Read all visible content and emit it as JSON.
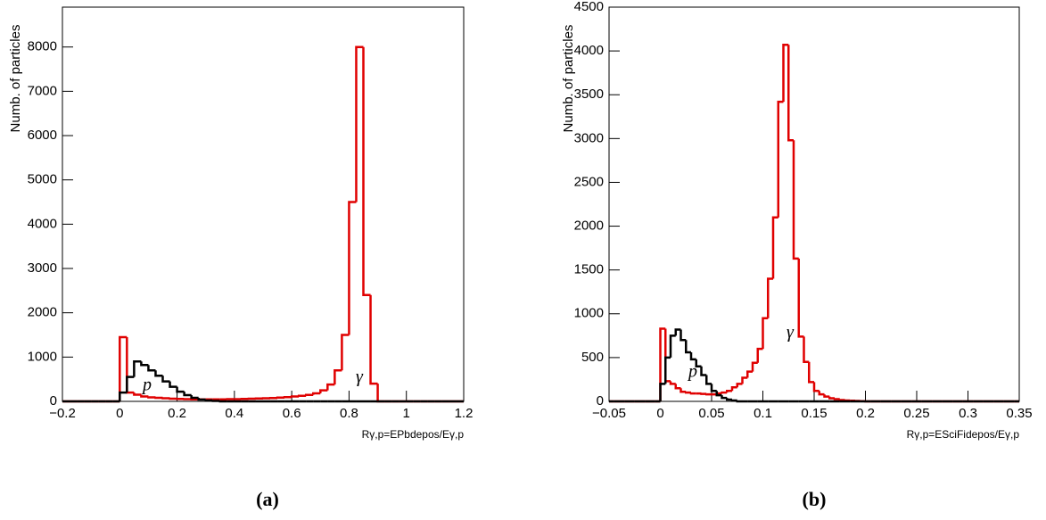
{
  "chart_data": [
    {
      "type": "histogram",
      "caption": "(a)",
      "y_label": "Numb. of particles",
      "x_label": "Rγ,p=EPbdepos/Eγ,p",
      "xlim": [
        -0.2,
        1.2
      ],
      "xticks": [
        {
          "value": -0.2,
          "label": "−0.2"
        },
        0,
        0.2,
        0.4,
        0.6,
        0.8,
        1,
        1.2
      ],
      "ylim": [
        0,
        8900
      ],
      "yticks": [
        0,
        1000,
        2000,
        3000,
        4000,
        5000,
        6000,
        7000,
        8000
      ],
      "annotations": [
        "p",
        "γ"
      ],
      "bins": [
        -0.2,
        -0.175,
        -0.15,
        -0.125,
        -0.1,
        -0.075,
        -0.05,
        -0.025,
        0,
        0.025,
        0.05,
        0.075,
        0.1,
        0.125,
        0.15,
        0.175,
        0.2,
        0.225,
        0.25,
        0.275,
        0.3,
        0.325,
        0.35,
        0.375,
        0.4,
        0.425,
        0.45,
        0.475,
        0.5,
        0.525,
        0.55,
        0.575,
        0.6,
        0.625,
        0.65,
        0.675,
        0.7,
        0.725,
        0.75,
        0.775,
        0.8,
        0.825,
        0.85,
        0.875,
        0.9,
        0.925,
        0.95,
        0.975,
        1,
        1.025,
        1.05,
        1.075,
        1.1,
        1.125,
        1.15,
        1.175,
        1.2
      ],
      "series": [
        {
          "color": "#e00000",
          "values": [
            0,
            0,
            0,
            0,
            0,
            0,
            0,
            0,
            1450,
            200,
            150,
            110,
            90,
            80,
            70,
            60,
            55,
            50,
            45,
            45,
            45,
            45,
            45,
            50,
            50,
            55,
            60,
            65,
            70,
            75,
            85,
            95,
            110,
            125,
            145,
            180,
            250,
            380,
            700,
            1500,
            4500,
            8000,
            2400,
            400,
            0,
            0,
            0,
            0,
            0,
            0,
            0,
            0,
            0,
            0,
            0,
            0
          ]
        },
        {
          "color": "#000000",
          "values": [
            0,
            0,
            0,
            0,
            0,
            0,
            0,
            0,
            200,
            550,
            900,
            820,
            700,
            580,
            450,
            330,
            220,
            140,
            80,
            40,
            20,
            10,
            0,
            0,
            0,
            0,
            0,
            0,
            0,
            0,
            0,
            0,
            0,
            0,
            0,
            0,
            0,
            0,
            0,
            0,
            0,
            0,
            0,
            0,
            0,
            0,
            0,
            0,
            0,
            0,
            0,
            0,
            0,
            0,
            0,
            0
          ]
        }
      ]
    },
    {
      "type": "histogram",
      "caption": "(b)",
      "y_label": "Numb. of particles",
      "x_label": "Rγ,p=ESciFidepos/Eγ,p",
      "xlim": [
        -0.05,
        0.35
      ],
      "xticks": [
        {
          "value": -0.05,
          "label": "−0.05"
        },
        0,
        0.05,
        0.1,
        0.15,
        0.2,
        0.25,
        0.3,
        0.35
      ],
      "ylim": [
        0,
        4500
      ],
      "yticks": [
        0,
        500,
        1000,
        1500,
        2000,
        2500,
        3000,
        3500,
        4000,
        4500
      ],
      "annotations": [
        "p",
        "γ"
      ],
      "bins": [
        -0.05,
        -0.045,
        -0.04,
        -0.035,
        -0.03,
        -0.025,
        -0.02,
        -0.015,
        -0.01,
        -0.005,
        0,
        0.005,
        0.01,
        0.015,
        0.02,
        0.025,
        0.03,
        0.035,
        0.04,
        0.045,
        0.05,
        0.055,
        0.06,
        0.065,
        0.07,
        0.075,
        0.08,
        0.085,
        0.09,
        0.095,
        0.1,
        0.105,
        0.11,
        0.115,
        0.12,
        0.125,
        0.13,
        0.135,
        0.14,
        0.145,
        0.15,
        0.155,
        0.16,
        0.165,
        0.17,
        0.175,
        0.18,
        0.185,
        0.19,
        0.195,
        0.2,
        0.205,
        0.21,
        0.215,
        0.22,
        0.225,
        0.23,
        0.235,
        0.24,
        0.245,
        0.25,
        0.255,
        0.26,
        0.265,
        0.27,
        0.275,
        0.28,
        0.285,
        0.29,
        0.295,
        0.3,
        0.305,
        0.31,
        0.315,
        0.32,
        0.325,
        0.33,
        0.335,
        0.34,
        0.345,
        0.35
      ],
      "series": [
        {
          "color": "#e00000",
          "values": [
            0,
            0,
            0,
            0,
            0,
            0,
            0,
            0,
            0,
            0,
            830,
            230,
            200,
            150,
            110,
            100,
            90,
            90,
            85,
            80,
            80,
            90,
            100,
            120,
            160,
            200,
            270,
            340,
            440,
            600,
            950,
            1400,
            2100,
            3420,
            4070,
            2980,
            1630,
            740,
            450,
            220,
            120,
            80,
            55,
            35,
            25,
            15,
            10,
            8,
            5,
            3,
            0,
            0,
            0,
            0,
            0,
            0,
            0,
            0,
            0,
            0,
            0,
            0,
            0,
            0,
            0,
            0,
            0,
            0,
            0,
            0,
            0,
            0,
            0,
            0,
            0,
            0,
            0,
            0,
            0,
            0
          ]
        },
        {
          "color": "#000000",
          "values": [
            0,
            0,
            0,
            0,
            0,
            0,
            0,
            0,
            0,
            0,
            200,
            500,
            750,
            820,
            700,
            560,
            480,
            400,
            300,
            200,
            120,
            70,
            40,
            20,
            10,
            0,
            0,
            0,
            0,
            0,
            0,
            0,
            0,
            0,
            0,
            0,
            0,
            0,
            0,
            0,
            0,
            0,
            0,
            0,
            0,
            0,
            0,
            0,
            0,
            0,
            0,
            0,
            0,
            0,
            0,
            0,
            0,
            0,
            0,
            0,
            0,
            0,
            0,
            0,
            0,
            0,
            0,
            0,
            0,
            0,
            0,
            0,
            0,
            0,
            0,
            0,
            0,
            0,
            0,
            0
          ]
        }
      ]
    }
  ]
}
